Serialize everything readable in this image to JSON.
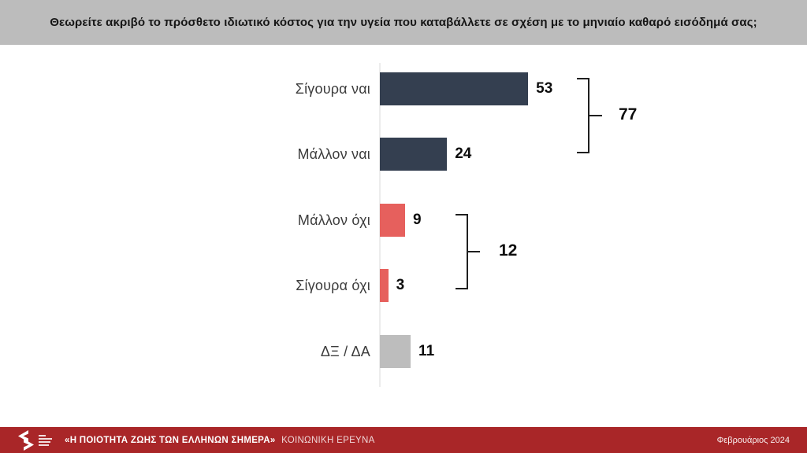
{
  "header": {
    "question": "Θεωρείτε ακριβό το πρόσθετο ιδιωτικό κόστος για την υγεία που καταβάλλετε σε σχέση με το μηνιαίο καθαρό εισόδημά σας;"
  },
  "chart_data": {
    "type": "bar",
    "orientation": "horizontal",
    "title": "",
    "xlabel": "",
    "ylabel": "",
    "categories": [
      "Σίγουρα ναι",
      "Μάλλον ναι",
      "Μάλλον όχι",
      "Σίγουρα όχι",
      "ΔΞ / ΔΑ"
    ],
    "values": [
      53,
      24,
      9,
      3,
      11
    ],
    "bar_colors": [
      "#343F50",
      "#343F50",
      "#E6605D",
      "#E6605D",
      "#BDBDBD"
    ],
    "xlim": [
      0,
      100
    ],
    "grid": false,
    "legend": "none",
    "groups": [
      {
        "value": "77",
        "members": [
          "Σίγουρα ναι",
          "Μάλλον ναι"
        ]
      },
      {
        "value": "12",
        "members": [
          "Μάλλον όχι",
          "Σίγουρα όχι"
        ]
      }
    ]
  },
  "footer": {
    "report_title": "«Η ΠΟΙΟΤΗΤΑ ΖΩΗΣ ΤΩΝ ΕΛΛΗΝΩΝ ΣΗΜΕΡΑ»",
    "report_subtitle": "ΚΟΙΝΩΝΙΚΗ ΕΡΕΥΝΑ",
    "date": "Φεβρουάριος 2024"
  },
  "colors": {
    "header_bg": "#BCBCBC",
    "yes_bar": "#343F50",
    "no_bar": "#E6605D",
    "neutral_bar": "#BDBDBD",
    "footer_bg": "#A92628",
    "bracket_line": "#1F1F1F"
  }
}
